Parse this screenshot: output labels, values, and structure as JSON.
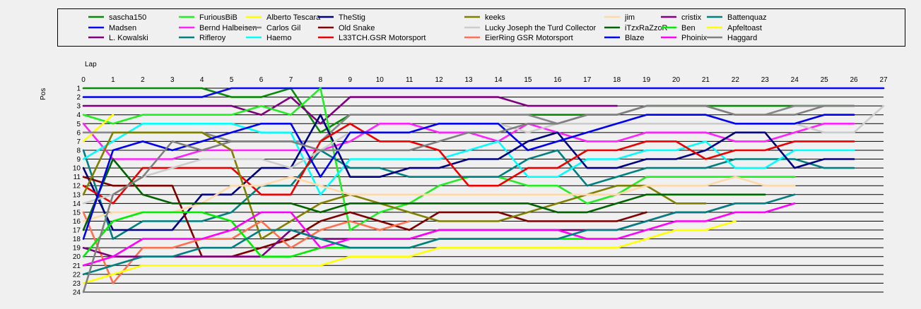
{
  "chart_data": {
    "type": "line",
    "xlabel": "Lap",
    "ylabel": "Pos",
    "x_ticks": [
      0,
      1,
      2,
      3,
      4,
      5,
      6,
      7,
      8,
      9,
      10,
      11,
      12,
      13,
      14,
      15,
      16,
      17,
      18,
      19,
      20,
      21,
      22,
      23,
      24,
      25,
      26,
      27
    ],
    "y_ticks": [
      1,
      2,
      3,
      4,
      5,
      6,
      7,
      8,
      9,
      10,
      11,
      12,
      13,
      14,
      15,
      16,
      17,
      18,
      19,
      20,
      21,
      22,
      23,
      24
    ],
    "xlim": [
      0,
      27
    ],
    "ylim": [
      1,
      24
    ],
    "y_inverted": true,
    "grid": "horizontal",
    "legend_position": "top",
    "series": [
      {
        "name": "sascha150",
        "color": "#0a8a0a",
        "values": [
          1,
          1,
          1,
          1,
          1,
          2,
          2,
          1,
          6,
          4,
          4,
          4,
          4,
          4,
          4,
          4,
          4,
          4,
          4,
          3,
          3,
          3,
          3,
          3,
          3,
          3,
          3
        ]
      },
      {
        "name": "Madsen",
        "color": "#0a0aee",
        "values": [
          2,
          2,
          2,
          2,
          2,
          1,
          1,
          1,
          1,
          1,
          1,
          1,
          1,
          1,
          1,
          1,
          1,
          1,
          1,
          1,
          1,
          1,
          1,
          1,
          1,
          1,
          1,
          1
        ]
      },
      {
        "name": "L. Kowalski",
        "color": "#800080",
        "values": [
          3,
          3,
          3,
          3,
          3,
          3,
          4,
          2,
          5,
          2,
          2,
          2,
          2,
          2,
          2,
          3,
          3,
          3,
          3
        ]
      },
      {
        "name": "FuriousBiB",
        "color": "#22ee22",
        "values": [
          4,
          5,
          4,
          4,
          4,
          4,
          3,
          4,
          1,
          17,
          15,
          14,
          12,
          11,
          11,
          12,
          12,
          14,
          13,
          11,
          11,
          11,
          11,
          11,
          11
        ]
      },
      {
        "name": "Bernd Halbeisen",
        "color": "#ff22ff",
        "values": [
          5,
          9,
          9,
          9,
          8,
          8,
          8,
          8,
          8,
          7,
          5,
          5,
          6,
          6,
          7,
          5,
          6,
          7,
          7,
          6,
          6,
          6,
          7,
          7,
          6,
          5,
          5
        ]
      },
      {
        "name": "Rifleroy",
        "color": "#008080",
        "values": [
          8,
          18,
          16,
          16,
          16,
          15,
          12,
          12,
          8,
          10,
          10,
          11,
          11,
          11,
          11,
          9,
          8,
          12,
          11,
          10,
          10,
          10,
          9,
          9,
          9,
          10,
          10
        ]
      },
      {
        "name": "Alberto Tescara",
        "color": "#ffff00",
        "values": [
          7,
          4
        ]
      },
      {
        "name": "Carlos Gil",
        "color": "#888888",
        "values": [
          6,
          6,
          6,
          6,
          6,
          7,
          7,
          7,
          7,
          4,
          4,
          4,
          4,
          4,
          4,
          4,
          5,
          4,
          4,
          3,
          3,
          3,
          4,
          4,
          3,
          3,
          3
        ]
      },
      {
        "name": "Haemo",
        "color": "#00ffff",
        "values": [
          9,
          7,
          5,
          5,
          5,
          5,
          6,
          6,
          13,
          9,
          9,
          9,
          9,
          8,
          7,
          11,
          11,
          9,
          9,
          8,
          8,
          7,
          10,
          10,
          8,
          8,
          8
        ]
      },
      {
        "name": "TheStig",
        "color": "#000080",
        "values": [
          10,
          17,
          17,
          17,
          13,
          13,
          10,
          10,
          4,
          11,
          11,
          10,
          10,
          9,
          9,
          7,
          6,
          10,
          10,
          9,
          9,
          8,
          6,
          6,
          10,
          9,
          9
        ]
      },
      {
        "name": "Old Snake",
        "color": "#800000",
        "values": [
          11,
          12,
          12,
          12,
          20,
          20,
          19,
          18,
          16,
          15,
          16,
          17,
          15,
          15,
          15,
          16,
          16,
          16,
          16,
          15
        ]
      },
      {
        "name": "L33TCH.GSR Motorsport",
        "color": "#ee0000",
        "values": [
          12,
          14,
          10,
          10,
          10,
          10,
          13,
          13,
          7,
          5,
          7,
          7,
          8,
          12,
          12,
          10,
          10,
          8,
          8,
          7,
          7,
          9,
          8,
          8,
          7,
          7,
          7
        ]
      },
      {
        "name": "keeks",
        "color": "#808000",
        "values": [
          13,
          6,
          6,
          6,
          6,
          8,
          18,
          16,
          14,
          13,
          14,
          15,
          16,
          16,
          16,
          15,
          14,
          13,
          12,
          12,
          14,
          14
        ]
      },
      {
        "name": "Lucky Joseph the Turd Collector",
        "color": "#cccccc",
        "values": [
          14,
          13,
          11,
          10,
          9,
          9,
          9,
          10,
          8,
          6,
          6,
          6,
          5,
          5,
          5,
          6,
          5,
          5,
          5,
          5,
          5,
          5,
          5,
          5,
          5,
          6,
          6,
          3
        ]
      },
      {
        "name": "EierRing GSR Motorsport",
        "color": "#ff7050",
        "values": [
          15,
          23,
          19,
          19,
          18,
          18,
          16,
          19,
          17,
          16,
          17,
          16
        ]
      },
      {
        "name": "jim",
        "color": "#ffd8a8",
        "values": [
          16,
          15,
          15,
          15,
          14,
          12,
          12,
          11,
          12,
          13,
          13,
          13,
          13,
          13,
          13,
          13,
          13,
          13,
          13,
          12,
          12,
          12,
          11,
          12,
          12
        ]
      },
      {
        "name": "iTzxRaZzoR",
        "color": "#006400",
        "values": [
          17,
          9,
          13,
          14,
          14,
          14,
          14,
          14,
          15,
          14,
          14,
          14,
          14,
          14,
          14,
          14,
          15,
          15,
          14,
          13,
          13,
          13,
          13,
          13
        ]
      },
      {
        "name": "Blaze",
        "color": "#0000ee",
        "values": [
          18,
          8,
          7,
          8,
          7,
          6,
          5,
          5,
          11,
          6,
          6,
          6,
          5,
          5,
          5,
          8,
          7,
          6,
          5,
          4,
          4,
          4,
          5,
          5,
          5,
          4,
          4
        ]
      },
      {
        "name": "cristix",
        "color": "#800080",
        "values": [
          19,
          20,
          20,
          20,
          20,
          20,
          20,
          17,
          18,
          18,
          18,
          18,
          17,
          17,
          17,
          17,
          17,
          17,
          17,
          16,
          15,
          15,
          14
        ]
      },
      {
        "name": "Ben",
        "color": "#00ee00",
        "values": [
          20,
          16,
          15,
          15,
          15,
          16,
          20,
          20,
          19,
          19,
          19,
          19,
          18,
          18,
          18,
          18,
          18,
          18,
          18
        ]
      },
      {
        "name": "Phoinix",
        "color": "#ff00ff",
        "values": [
          21,
          20,
          18,
          18,
          18,
          17,
          15,
          15,
          19,
          18,
          18,
          18,
          17,
          17,
          17,
          17,
          17,
          18,
          18,
          17,
          16,
          16,
          15,
          15,
          14
        ]
      },
      {
        "name": "Battenquaz",
        "color": "#008080",
        "values": [
          22,
          21,
          20,
          20,
          19,
          19,
          17,
          17,
          18,
          19,
          19,
          19,
          18,
          18,
          18,
          18,
          18,
          17,
          17,
          16,
          15,
          15,
          14,
          14,
          13
        ]
      },
      {
        "name": "Apfeltoast",
        "color": "#ffff00",
        "values": [
          23,
          22,
          21,
          21,
          21,
          21,
          21,
          21,
          21,
          20,
          20,
          20,
          19,
          19,
          19,
          19,
          19,
          19,
          19,
          18,
          17,
          17,
          16
        ]
      },
      {
        "name": "Haggard",
        "color": "#808080",
        "values": [
          24,
          13,
          11,
          7,
          8,
          7,
          7,
          7,
          8,
          8,
          8,
          8,
          7,
          6,
          6,
          5,
          5,
          4,
          4,
          3,
          3,
          3,
          4,
          4,
          4,
          3,
          3
        ]
      }
    ]
  }
}
